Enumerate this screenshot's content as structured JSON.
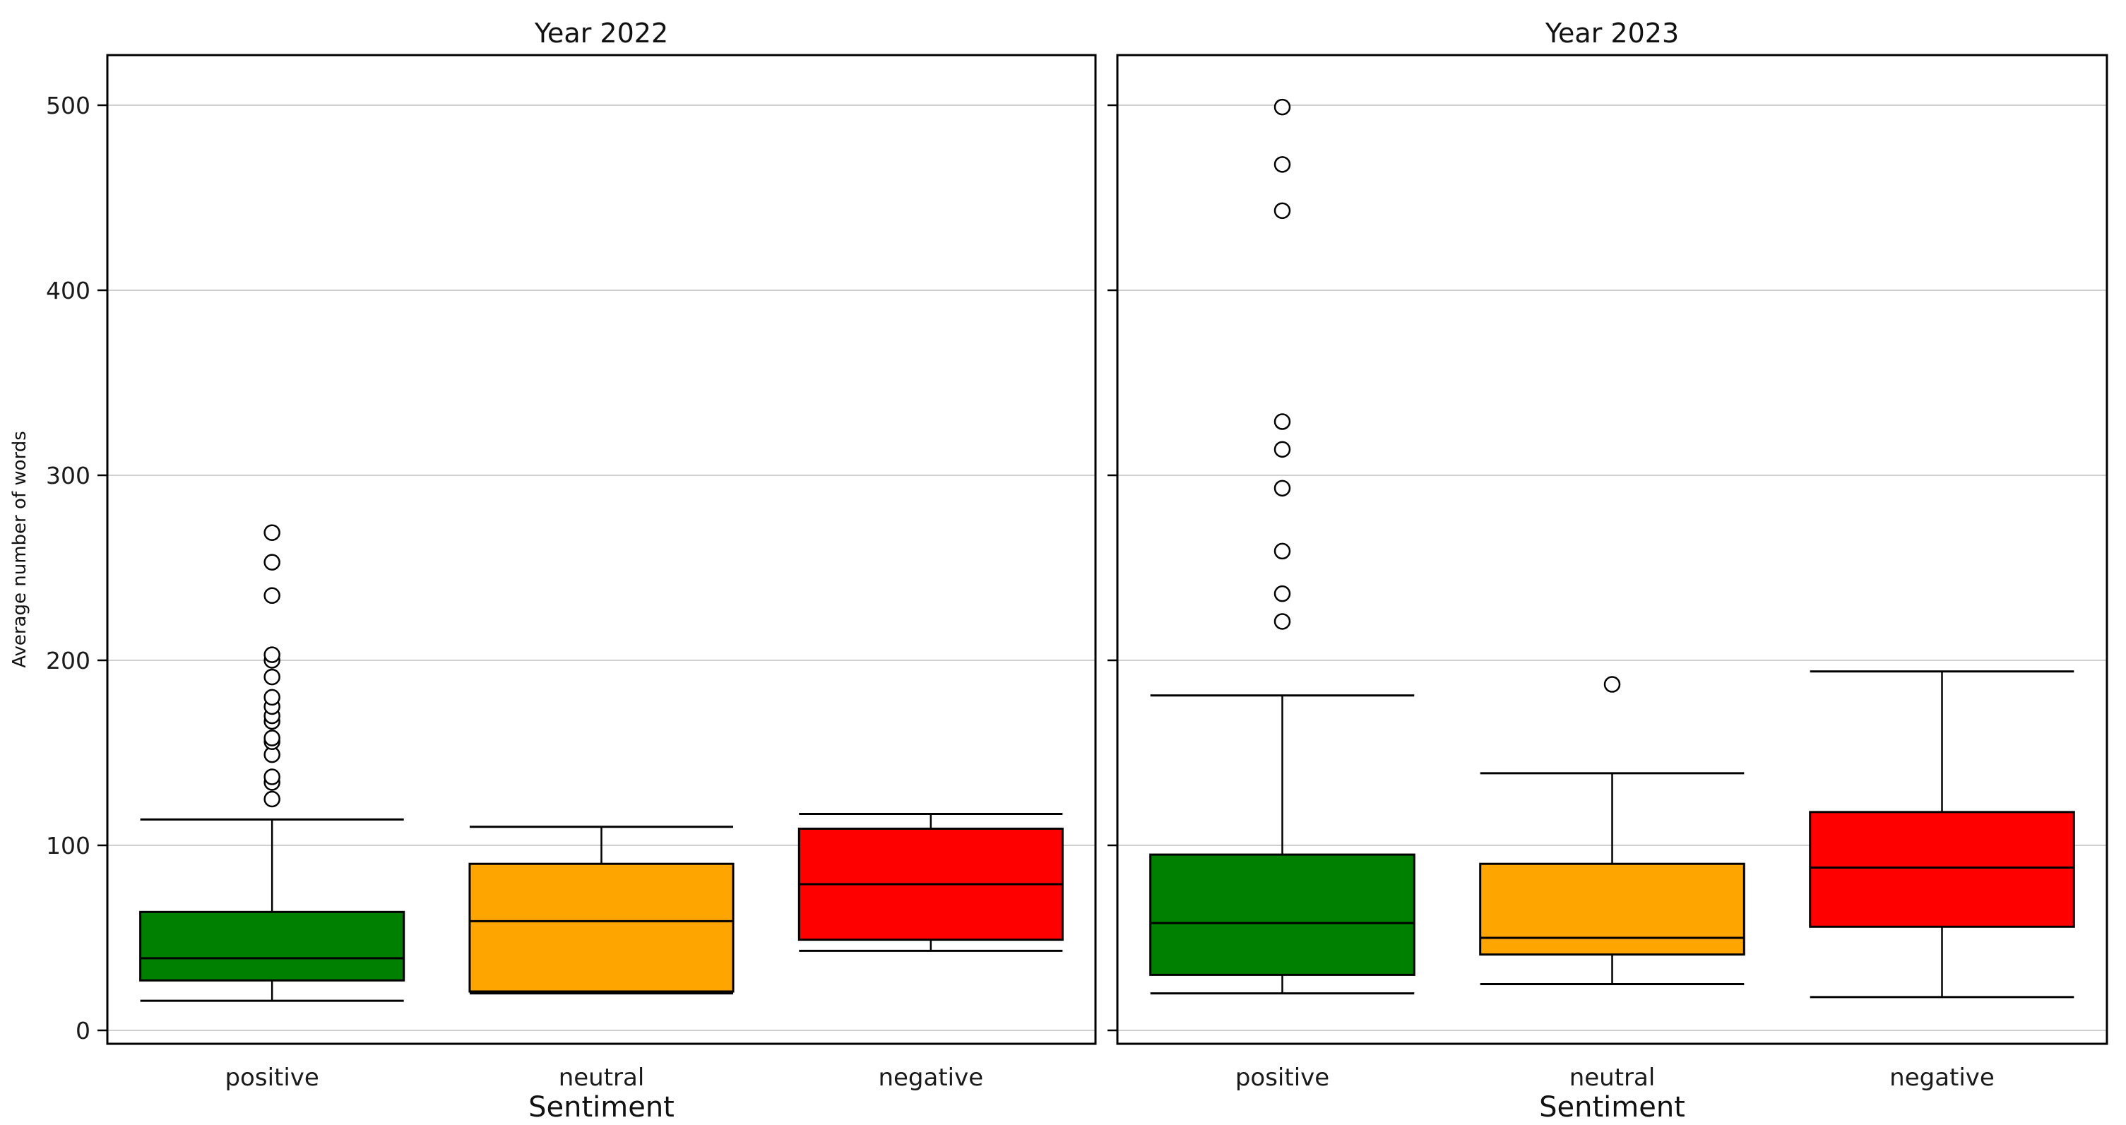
{
  "chart_data": {
    "type": "boxplot",
    "ylabel": "Average number of words",
    "xlabel": "Sentiment",
    "categories": [
      "positive",
      "neutral",
      "negative"
    ],
    "colors": {
      "positive": "#008000",
      "neutral": "#FFA500",
      "negative": "#FF0000"
    },
    "yticks": [
      0,
      100,
      200,
      300,
      400,
      500
    ],
    "ylim": [
      -8,
      527
    ],
    "grid": "horizontal",
    "legend": "none",
    "panels": [
      {
        "title": "Year 2022",
        "boxes": [
          {
            "category": "positive",
            "whisker_low": 16,
            "q1": 27,
            "median": 39,
            "q3": 64,
            "whisker_high": 114,
            "outliers": [
              125,
              134,
              137,
              149,
              156,
              158,
              167,
              170,
              175,
              180,
              191,
              200,
              203,
              235,
              253,
              269
            ]
          },
          {
            "category": "neutral",
            "whisker_low": 20,
            "q1": 21,
            "median": 59,
            "q3": 90,
            "whisker_high": 110,
            "outliers": []
          },
          {
            "category": "negative",
            "whisker_low": 43,
            "q1": 49,
            "median": 79,
            "q3": 109,
            "whisker_high": 117,
            "outliers": []
          }
        ]
      },
      {
        "title": "Year 2023",
        "boxes": [
          {
            "category": "positive",
            "whisker_low": 20,
            "q1": 30,
            "median": 58,
            "q3": 95,
            "whisker_high": 181,
            "outliers": [
              221,
              236,
              259,
              293,
              314,
              329,
              443,
              468,
              499
            ]
          },
          {
            "category": "neutral",
            "whisker_low": 25,
            "q1": 41,
            "median": 50,
            "q3": 90,
            "whisker_high": 139,
            "outliers": [
              187
            ]
          },
          {
            "category": "negative",
            "whisker_low": 18,
            "q1": 56,
            "median": 88,
            "q3": 118,
            "whisker_high": 194,
            "outliers": []
          }
        ]
      }
    ]
  }
}
